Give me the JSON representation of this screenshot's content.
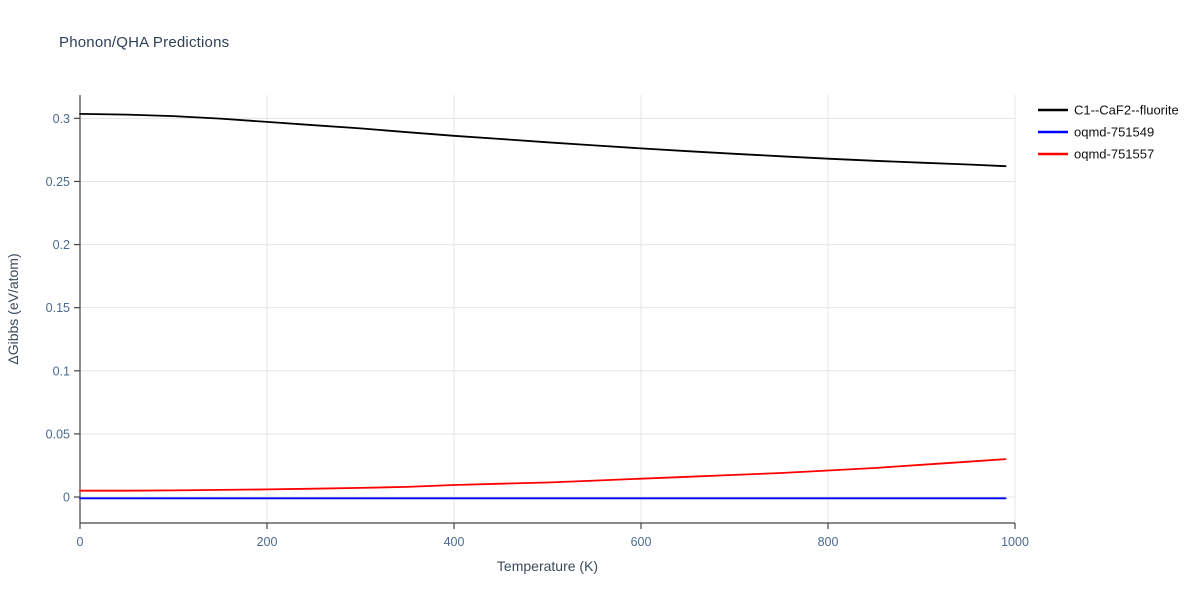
{
  "chart_data": {
    "type": "line",
    "title": "Phonon/QHA Predictions",
    "xlabel": "Temperature (K)",
    "ylabel": "ΔGibbs (eV/atom)",
    "xlim": [
      0,
      1000
    ],
    "ylim": [
      -0.0206,
      0.3185
    ],
    "xticks": [
      0,
      200,
      400,
      600,
      800,
      1000
    ],
    "yticks": [
      0,
      0.05,
      0.1,
      0.15,
      0.2,
      0.25,
      0.3
    ],
    "grid": true,
    "legend_position": "top-right",
    "x": [
      0,
      50,
      100,
      150,
      200,
      250,
      300,
      350,
      400,
      450,
      500,
      550,
      600,
      650,
      700,
      750,
      800,
      850,
      900,
      950,
      990
    ],
    "series": [
      {
        "name": "C1--CaF2--fluorite",
        "color": "#000000",
        "values": [
          0.3035,
          0.303,
          0.3018,
          0.2998,
          0.2972,
          0.2946,
          0.292,
          0.289,
          0.2862,
          0.2836,
          0.281,
          0.2786,
          0.2762,
          0.274,
          0.2719,
          0.2699,
          0.268,
          0.2664,
          0.2649,
          0.2634,
          0.2621
        ]
      },
      {
        "name": "oqmd-751549",
        "color": "#0000ff",
        "values": [
          -0.001,
          -0.001,
          -0.001,
          -0.001,
          -0.001,
          -0.001,
          -0.001,
          -0.001,
          -0.001,
          -0.001,
          -0.001,
          -0.001,
          -0.001,
          -0.001,
          -0.001,
          -0.001,
          -0.001,
          -0.001,
          -0.001,
          -0.001,
          -0.001
        ]
      },
      {
        "name": "oqmd-751557",
        "color": "#ff0000",
        "values": [
          0.005,
          0.005,
          0.0052,
          0.0056,
          0.006,
          0.0066,
          0.0072,
          0.008,
          0.0095,
          0.0105,
          0.0115,
          0.013,
          0.0145,
          0.016,
          0.0175,
          0.019,
          0.021,
          0.023,
          0.0255,
          0.028,
          0.03
        ]
      }
    ],
    "colors": {
      "grid": "#e5e5e5",
      "axis": "#444444",
      "tick_label": "#4c6a8f",
      "title": "#2e4057",
      "axis_label": "#3b4a5a",
      "legend_text": "#111111"
    }
  }
}
